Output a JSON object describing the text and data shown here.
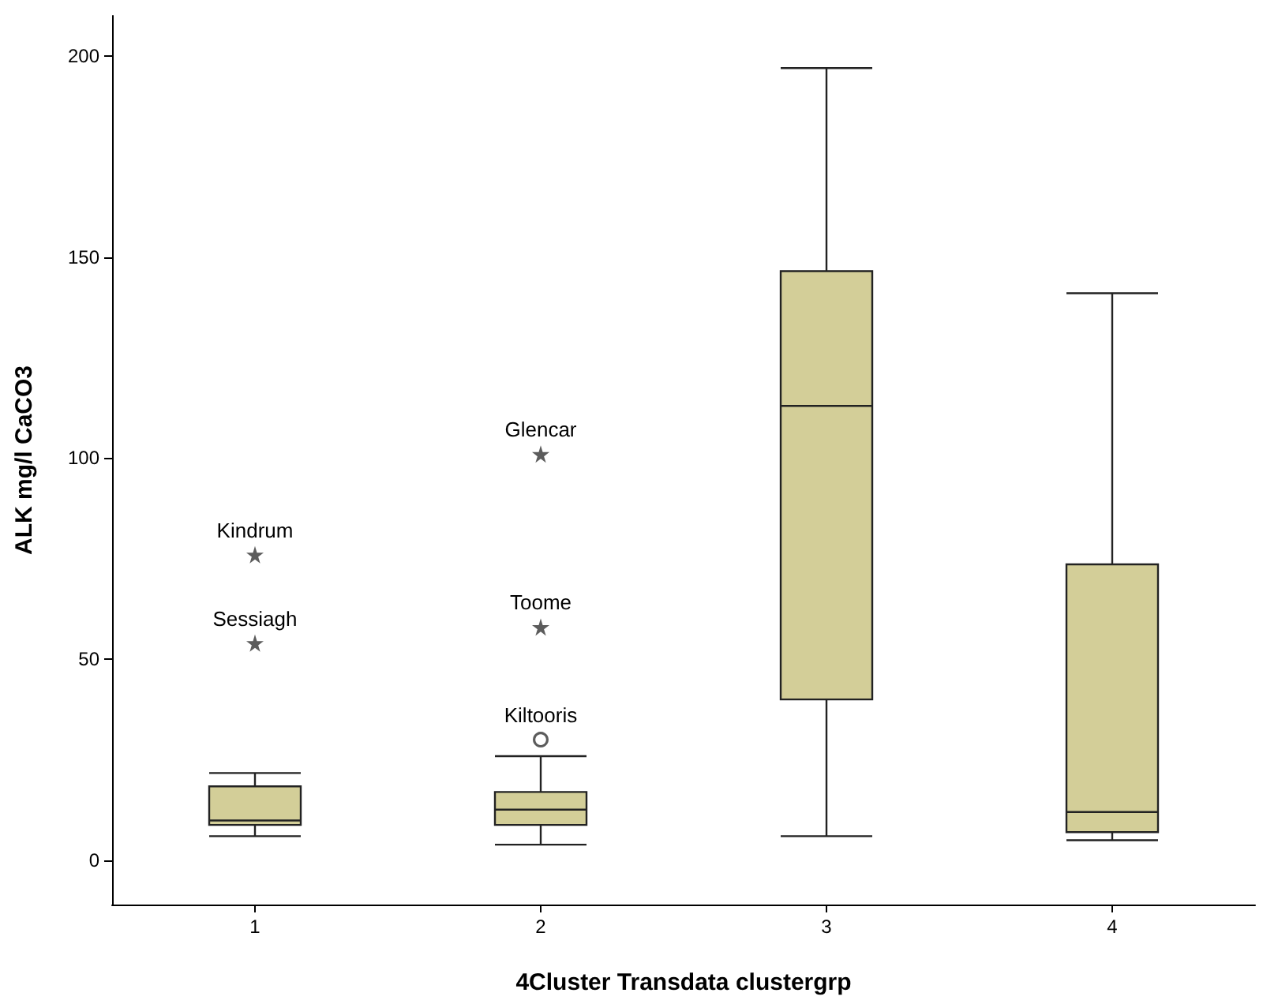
{
  "chart_data": {
    "type": "box",
    "xlabel": "4Cluster Transdata clustergrp",
    "ylabel": "ALK mg/l CaCO3",
    "categories": [
      "1",
      "2",
      "3",
      "4"
    ],
    "ylim": [
      -11,
      210
    ],
    "yticks": [
      0,
      50,
      100,
      150,
      200
    ],
    "grid": false,
    "series": [
      {
        "type": "box",
        "color": "#d3ce98",
        "boxes": [
          {
            "low": 6,
            "q1": 8.8,
            "median": 9.9,
            "q3": 18.4,
            "high": 21.7
          },
          {
            "low": 3.9,
            "q1": 8.8,
            "median": 12.6,
            "q3": 17,
            "high": 25.9
          },
          {
            "low": 6,
            "q1": 40,
            "median": 113,
            "q3": 146.5,
            "high": 197
          },
          {
            "low": 5,
            "q1": 7,
            "median": 12,
            "q3": 73.6,
            "high": 141
          }
        ]
      },
      {
        "type": "scatter",
        "marker": "star",
        "color": "#333333",
        "x": [
          "1",
          "1",
          "2",
          "2"
        ],
        "values": [
          76,
          54,
          101,
          58
        ]
      },
      {
        "type": "scatter",
        "marker": "circle",
        "color": "#333333",
        "x": [
          "2"
        ],
        "values": [
          30
        ]
      }
    ],
    "annotations": [
      {
        "text": "Kindrum",
        "x": "1",
        "y": 76
      },
      {
        "text": "Sessiagh",
        "x": "1",
        "y": 54
      },
      {
        "text": "Glencar",
        "x": "2",
        "y": 101
      },
      {
        "text": "Toome",
        "x": "2",
        "y": 58
      },
      {
        "text": "Kiltooris",
        "x": "2",
        "y": 30
      }
    ]
  }
}
